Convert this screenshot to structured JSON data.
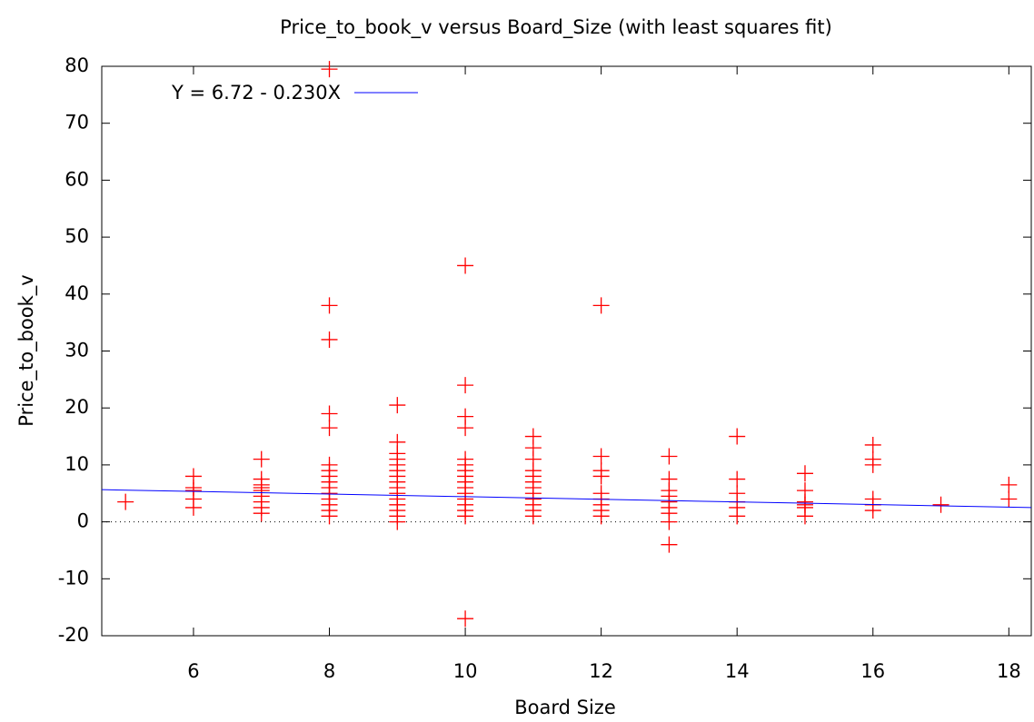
{
  "chart_data": {
    "type": "scatter",
    "title": "Price_to_book_v versus Board_Size (with least squares fit)",
    "x_label": "Board  Size",
    "y_label": "Price_to_book_v",
    "color": "#ff0000",
    "x": [
      5,
      6,
      6,
      6,
      6,
      6,
      7,
      7,
      7,
      7,
      7,
      7,
      7,
      7,
      7,
      8,
      8,
      8,
      8,
      8,
      8,
      8,
      8,
      8,
      8,
      8,
      8,
      8,
      8,
      8,
      9,
      9,
      9,
      9,
      9,
      9,
      9,
      9,
      9,
      9,
      9,
      9,
      9,
      9,
      9,
      10,
      10,
      10,
      10,
      10,
      10,
      10,
      10,
      10,
      10,
      10,
      10,
      10,
      10,
      10,
      10,
      11,
      11,
      11,
      11,
      11,
      11,
      11,
      11,
      11,
      11,
      11,
      11,
      12,
      12,
      12,
      12,
      12,
      12,
      12,
      12,
      12,
      13,
      13,
      13,
      13,
      13,
      13,
      13,
      13,
      13,
      14,
      14,
      14,
      14,
      14,
      14,
      15,
      15,
      15,
      15,
      15,
      15,
      16,
      16,
      16,
      16,
      16,
      16,
      17,
      18,
      18
    ],
    "values": [
      3.5,
      2.5,
      4,
      5.5,
      6,
      8,
      1.5,
      2.5,
      3.5,
      4.5,
      5.5,
      6,
      6.5,
      7.5,
      11,
      1,
      2,
      3,
      4,
      5,
      6,
      7,
      8,
      9,
      10,
      16.5,
      19,
      32,
      38,
      79.5,
      0,
      1,
      2,
      3,
      4,
      5,
      6,
      7,
      8,
      9,
      10,
      11,
      12,
      14,
      20.5,
      1,
      2,
      3,
      4,
      5,
      6,
      7,
      8,
      9,
      10,
      11,
      16.5,
      18.5,
      24,
      45,
      -17,
      1,
      2,
      3,
      4,
      5,
      6,
      7,
      8,
      9,
      11,
      13,
      15,
      1,
      2,
      3,
      4,
      5,
      8,
      9,
      11.5,
      38,
      -4,
      0,
      1.5,
      2.5,
      3.5,
      4.5,
      5.5,
      7.5,
      11.5,
      1,
      2.5,
      3.5,
      5,
      7.5,
      15,
      1,
      2.5,
      3,
      3.5,
      5.5,
      8.5,
      2,
      3,
      4,
      10,
      11,
      13.5,
      3,
      4,
      6.5
    ],
    "fit": {
      "label": "Y = 6.72 - 0.230X",
      "intercept": 6.72,
      "slope": -0.23,
      "color": "#0000ff"
    },
    "xlim": [
      4.65,
      18.33
    ],
    "ylim": [
      -20,
      80
    ],
    "xticks": [
      6,
      8,
      10,
      12,
      14,
      16,
      18
    ],
    "yticks": [
      -20,
      -10,
      0,
      10,
      20,
      30,
      40,
      50,
      60,
      70,
      80
    ],
    "zero_line": true
  }
}
